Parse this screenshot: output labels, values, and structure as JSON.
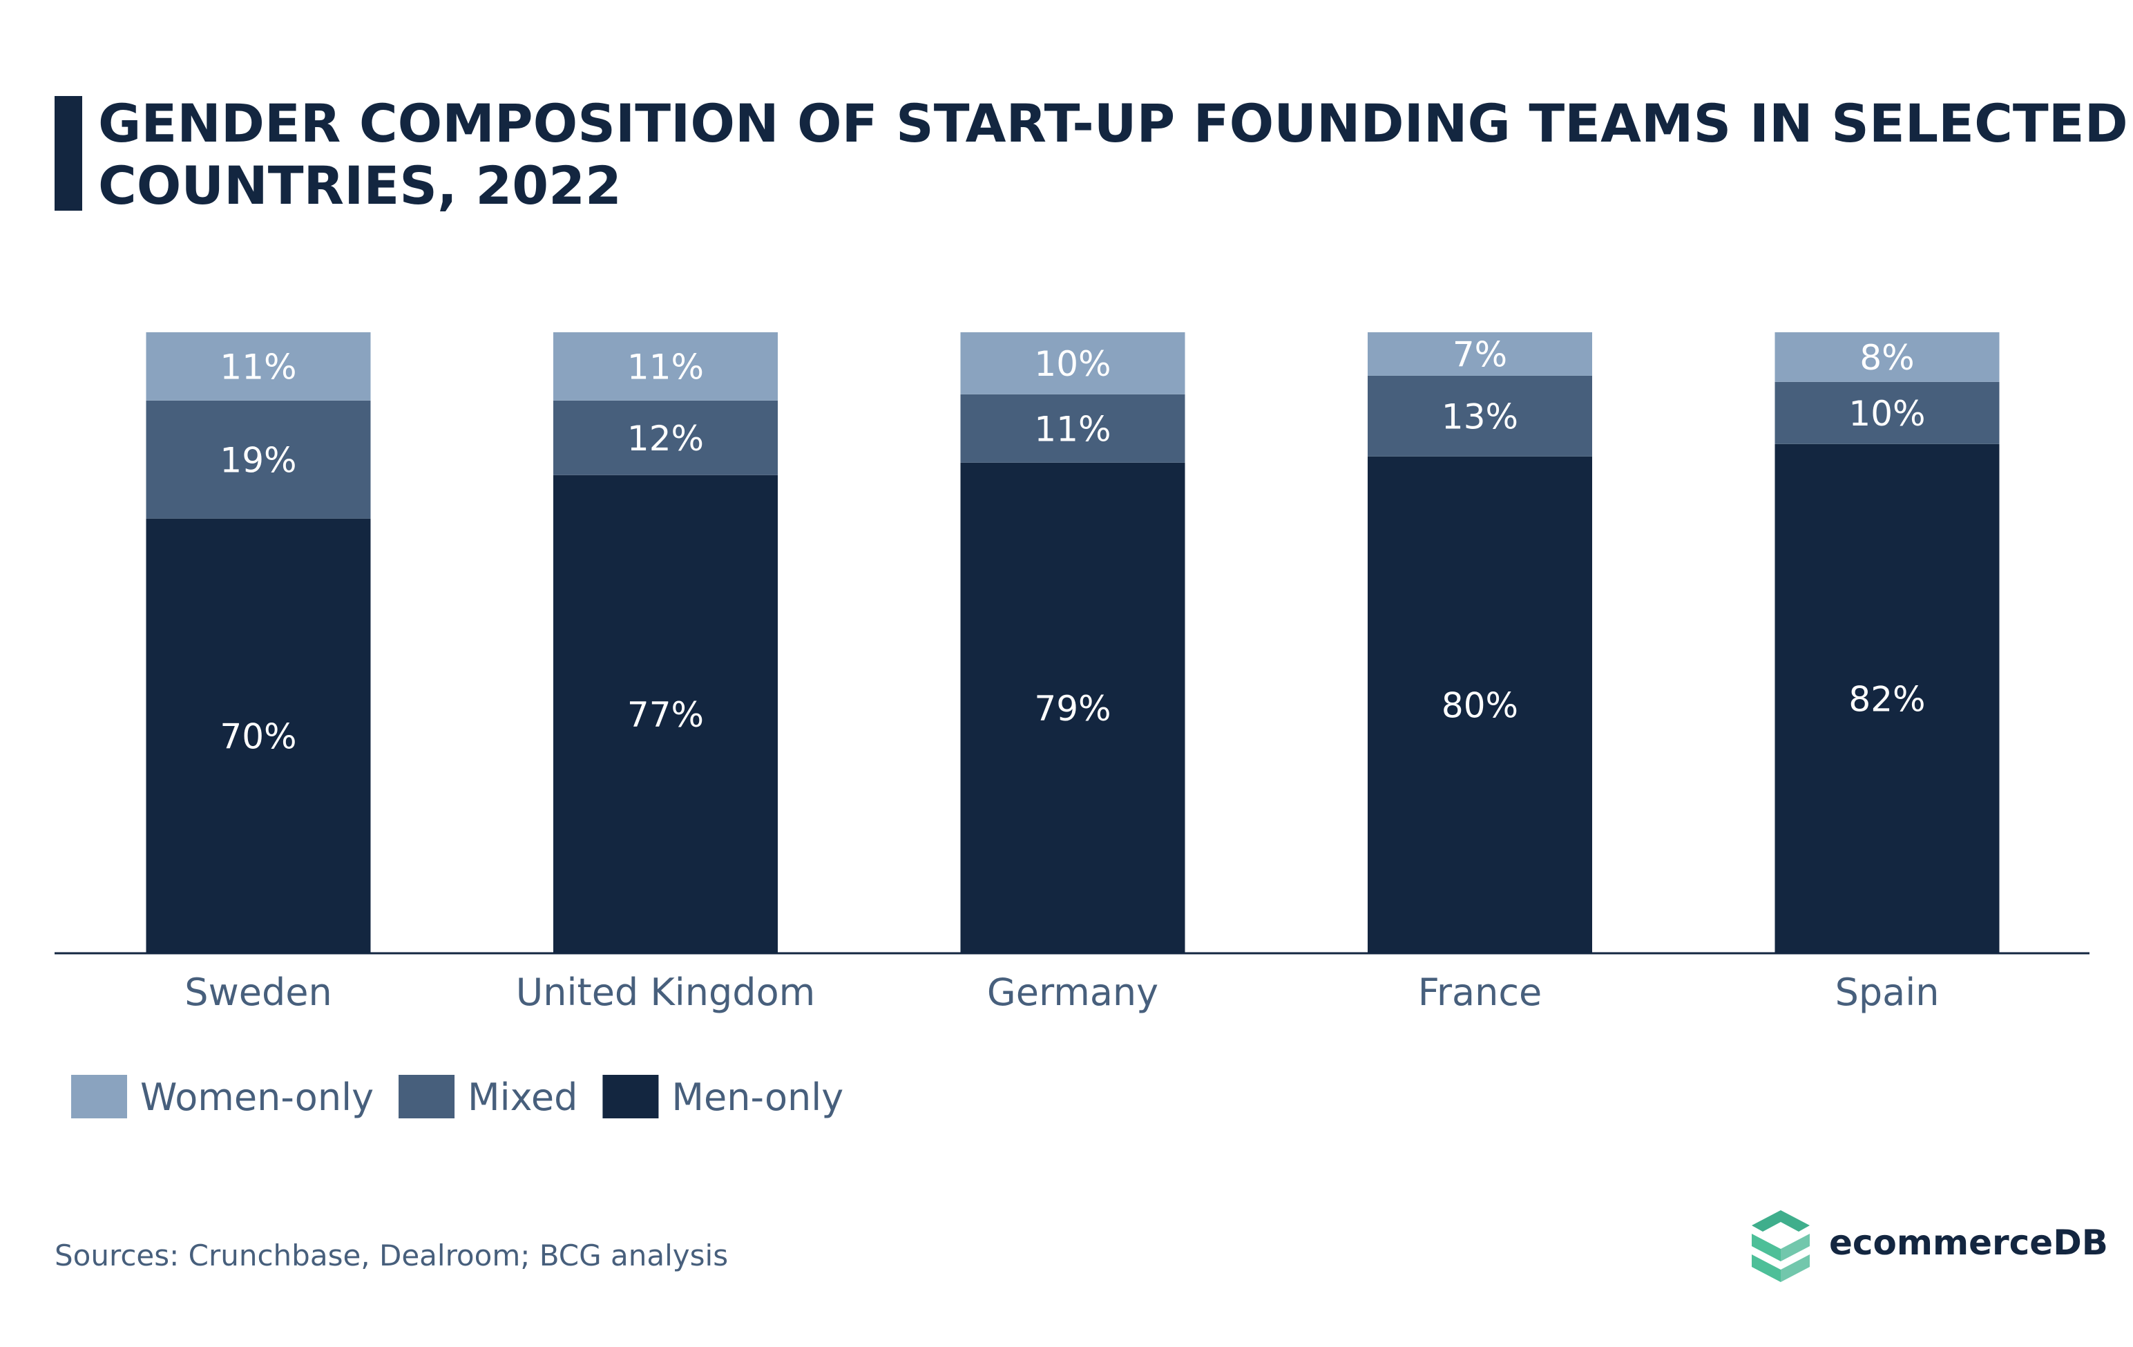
{
  "title_lines": [
    "GENDER COMPOSITION OF START-UP FOUNDING TEAMS IN SELECTED",
    "COUNTRIES, 2022"
  ],
  "source": "Sources: Crunchbase, Dealroom; BCG analysis",
  "logo_text": "ecommerceDB",
  "chart_data": {
    "type": "bar",
    "stacked": true,
    "title": "GENDER COMPOSITION OF START-UP FOUNDING TEAMS IN SELECTED COUNTRIES, 2022",
    "categories": [
      "Sweden",
      "United Kingdom",
      "Germany",
      "France",
      "Spain"
    ],
    "series": [
      {
        "name": "Men-only",
        "color": "#132640",
        "values": [
          70,
          77,
          79,
          80,
          82
        ]
      },
      {
        "name": "Mixed",
        "color": "#475f7c",
        "values": [
          19,
          12,
          11,
          13,
          10
        ]
      },
      {
        "name": "Women-only",
        "color": "#8aa3bf",
        "values": [
          11,
          11,
          10,
          7,
          8
        ]
      }
    ],
    "legend_order": [
      "Women-only",
      "Mixed",
      "Men-only"
    ],
    "value_suffix": "%",
    "ylim": [
      0,
      100
    ],
    "grid": false,
    "legend_position": "bottom-left"
  }
}
